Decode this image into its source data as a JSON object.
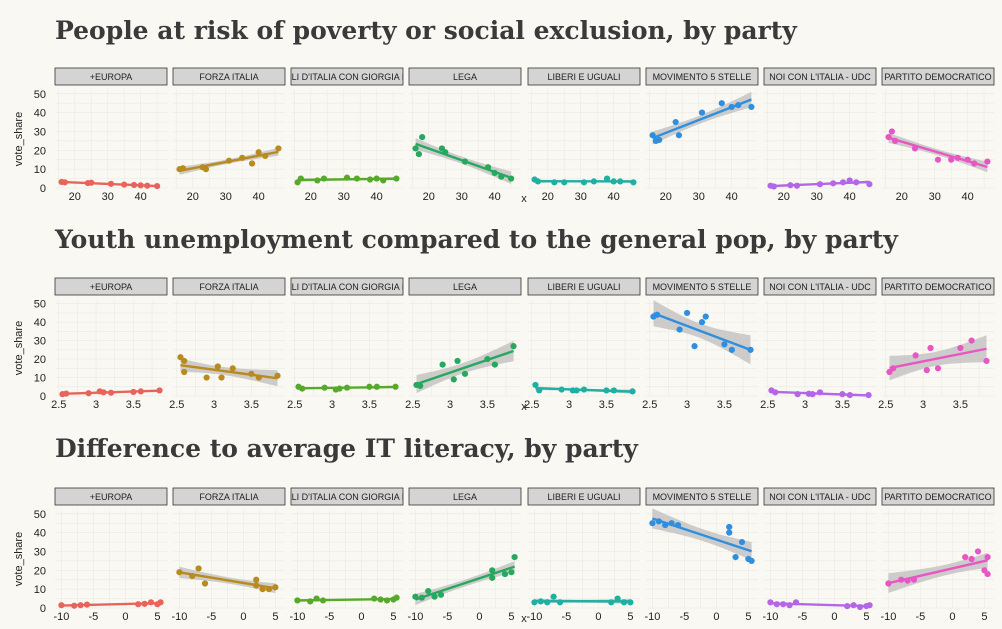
{
  "chart_data": [
    {
      "type": "scatter",
      "title": "People at risk of poverty or social exclusion, by party",
      "xlabel": "x",
      "ylabel": "vote_share",
      "xlim": [
        14,
        48
      ],
      "ylim": [
        0,
        52
      ],
      "xticks": [
        20,
        30,
        40
      ],
      "yticks": [
        0,
        10,
        20,
        30,
        40,
        50
      ],
      "grid": true,
      "trend": "linear with confidence band",
      "facets": [
        {
          "name": "+EUROPA",
          "color": "#e8645a",
          "points": [
            [
              16,
              3.2
            ],
            [
              17,
              3
            ],
            [
              24,
              2.6
            ],
            [
              25,
              2.8
            ],
            [
              31,
              2.2
            ],
            [
              35,
              1.8
            ],
            [
              38,
              1.6
            ],
            [
              40,
              1.4
            ],
            [
              42,
              1.2
            ],
            [
              45,
              1.0
            ]
          ]
        },
        {
          "name": "FORZA ITALIA",
          "color": "#b88a20",
          "points": [
            [
              16,
              10
            ],
            [
              17,
              10.5
            ],
            [
              23,
              11
            ],
            [
              24,
              10
            ],
            [
              31,
              14.5
            ],
            [
              35,
              16
            ],
            [
              38,
              13
            ],
            [
              40,
              19
            ],
            [
              42,
              17
            ],
            [
              46,
              21
            ]
          ]
        },
        {
          "name": "FRATELLI D'ITALIA CON GIORGIA MELONI",
          "color": "#57a92a",
          "points": [
            [
              16,
              3
            ],
            [
              17,
              5
            ],
            [
              22,
              4
            ],
            [
              24,
              5
            ],
            [
              31,
              5.5
            ],
            [
              34,
              5
            ],
            [
              38,
              4.5
            ],
            [
              40,
              5
            ],
            [
              42,
              4
            ],
            [
              46,
              5
            ]
          ]
        },
        {
          "name": "LEGA",
          "color": "#27a85f",
          "points": [
            [
              16,
              21
            ],
            [
              17,
              18
            ],
            [
              18,
              27
            ],
            [
              24,
              21
            ],
            [
              25,
              19
            ],
            [
              31,
              14
            ],
            [
              38,
              11
            ],
            [
              40,
              8
            ],
            [
              42,
              6
            ],
            [
              45,
              5
            ]
          ]
        },
        {
          "name": "LIBERI E UGUALI",
          "color": "#1fb0a4",
          "points": [
            [
              16,
              4.5
            ],
            [
              17,
              3.5
            ],
            [
              22,
              3
            ],
            [
              25,
              3
            ],
            [
              31,
              3
            ],
            [
              34,
              3.5
            ],
            [
              38,
              5
            ],
            [
              40,
              3.5
            ],
            [
              42,
              3.5
            ],
            [
              46,
              3
            ]
          ]
        },
        {
          "name": "MOVIMENTO 5 STELLE",
          "color": "#2e8fe0",
          "points": [
            [
              16,
              28
            ],
            [
              17,
              25
            ],
            [
              18,
              25.5
            ],
            [
              23,
              35
            ],
            [
              24,
              28
            ],
            [
              31,
              40
            ],
            [
              37,
              45
            ],
            [
              40,
              43
            ],
            [
              42,
              44
            ],
            [
              46,
              43
            ]
          ]
        },
        {
          "name": "NOI CON L'ITALIA - UDC",
          "color": "#b566e8",
          "points": [
            [
              16,
              1.2
            ],
            [
              17,
              0.8
            ],
            [
              22,
              1.5
            ],
            [
              24,
              1.2
            ],
            [
              31,
              2
            ],
            [
              35,
              2.5
            ],
            [
              38,
              3
            ],
            [
              40,
              4
            ],
            [
              42,
              3
            ],
            [
              46,
              2
            ]
          ]
        },
        {
          "name": "PARTITO DEMOCRATICO",
          "color": "#e856c4",
          "points": [
            [
              16,
              27
            ],
            [
              17,
              30
            ],
            [
              18,
              25
            ],
            [
              24,
              21
            ],
            [
              31,
              15
            ],
            [
              35,
              15
            ],
            [
              37,
              16
            ],
            [
              40,
              15
            ],
            [
              42,
              13
            ],
            [
              46,
              14
            ]
          ]
        }
      ]
    },
    {
      "type": "scatter",
      "title": "Youth unemployment compared to the general pop, by party",
      "xlabel": "x",
      "ylabel": "vote_share",
      "xlim": [
        2.45,
        3.95
      ],
      "ylim": [
        0,
        52
      ],
      "xticks": [
        2.5,
        3.0,
        3.5
      ],
      "yticks": [
        0,
        10,
        20,
        30,
        40,
        50
      ],
      "grid": true,
      "trend": "linear with confidence band",
      "facets": [
        {
          "name": "+EUROPA",
          "color": "#e8645a",
          "points": [
            [
              2.55,
              1
            ],
            [
              2.6,
              1.3
            ],
            [
              2.9,
              1.5
            ],
            [
              3.05,
              2.5
            ],
            [
              3.1,
              2
            ],
            [
              3.2,
              1.8
            ],
            [
              3.5,
              2.2
            ],
            [
              3.6,
              2.5
            ],
            [
              3.85,
              3
            ]
          ]
        },
        {
          "name": "FORZA ITALIA",
          "color": "#b88a20",
          "points": [
            [
              2.55,
              21
            ],
            [
              2.6,
              19
            ],
            [
              2.6,
              13
            ],
            [
              2.9,
              10
            ],
            [
              3.05,
              16
            ],
            [
              3.1,
              10
            ],
            [
              3.25,
              15
            ],
            [
              3.5,
              12
            ],
            [
              3.6,
              10
            ],
            [
              3.85,
              11
            ]
          ]
        },
        {
          "name": "FRATELLI D'ITALIA CON GIORGIA MELONI",
          "color": "#57a92a",
          "points": [
            [
              2.55,
              5
            ],
            [
              2.6,
              4
            ],
            [
              2.9,
              4.5
            ],
            [
              3.05,
              3.5
            ],
            [
              3.1,
              4
            ],
            [
              3.2,
              4.5
            ],
            [
              3.5,
              5
            ],
            [
              3.6,
              5
            ],
            [
              3.85,
              5
            ]
          ]
        },
        {
          "name": "LEGA",
          "color": "#27a85f",
          "points": [
            [
              2.55,
              6
            ],
            [
              2.6,
              5.5
            ],
            [
              2.9,
              17
            ],
            [
              3.05,
              9
            ],
            [
              3.1,
              19
            ],
            [
              3.2,
              12
            ],
            [
              3.5,
              20
            ],
            [
              3.6,
              17
            ],
            [
              3.85,
              27
            ]
          ]
        },
        {
          "name": "LIBERI E UGUALI",
          "color": "#1fb0a4",
          "points": [
            [
              2.55,
              6
            ],
            [
              2.6,
              3
            ],
            [
              2.9,
              3.5
            ],
            [
              3.05,
              3
            ],
            [
              3.1,
              3
            ],
            [
              3.2,
              3.5
            ],
            [
              3.5,
              3
            ],
            [
              3.6,
              3
            ],
            [
              3.85,
              2.5
            ]
          ]
        },
        {
          "name": "MOVIMENTO 5 STELLE",
          "color": "#2e8fe0",
          "points": [
            [
              2.55,
              43
            ],
            [
              2.6,
              44
            ],
            [
              2.9,
              36
            ],
            [
              3.0,
              45
            ],
            [
              3.1,
              27
            ],
            [
              3.2,
              40
            ],
            [
              3.25,
              43
            ],
            [
              3.5,
              28
            ],
            [
              3.6,
              25
            ],
            [
              3.85,
              25
            ]
          ]
        },
        {
          "name": "NOI CON L'ITALIA - UDC",
          "color": "#b566e8",
          "points": [
            [
              2.55,
              3
            ],
            [
              2.6,
              2
            ],
            [
              2.9,
              1
            ],
            [
              3.05,
              1.2
            ],
            [
              3.1,
              1
            ],
            [
              3.2,
              2
            ],
            [
              3.5,
              1
            ],
            [
              3.6,
              0.5
            ],
            [
              3.85,
              0.5
            ]
          ]
        },
        {
          "name": "PARTITO DEMOCRATICO",
          "color": "#e856c4",
          "points": [
            [
              2.55,
              13
            ],
            [
              2.6,
              15
            ],
            [
              2.9,
              22
            ],
            [
              3.05,
              14
            ],
            [
              3.1,
              26
            ],
            [
              3.2,
              15
            ],
            [
              3.5,
              26
            ],
            [
              3.65,
              30
            ],
            [
              3.85,
              19
            ]
          ]
        }
      ]
    },
    {
      "type": "scatter",
      "title": "Difference to average IT literacy, by party",
      "xlabel": "x",
      "ylabel": "vote_share",
      "xlim": [
        -11,
        6.5
      ],
      "ylim": [
        0,
        52
      ],
      "xticks": [
        -10,
        -5,
        0,
        5
      ],
      "yticks": [
        0,
        10,
        20,
        30,
        40,
        50
      ],
      "grid": true,
      "trend": "linear with confidence band",
      "facets": [
        {
          "name": "+EUROPA",
          "color": "#e8645a",
          "points": [
            [
              -10,
              1.5
            ],
            [
              -8,
              1.2
            ],
            [
              -7,
              1.5
            ],
            [
              -6,
              1.8
            ],
            [
              2,
              2
            ],
            [
              3,
              2.2
            ],
            [
              4,
              3
            ],
            [
              5,
              2
            ],
            [
              5.5,
              3
            ]
          ]
        },
        {
          "name": "FORZA ITALIA",
          "color": "#b88a20",
          "points": [
            [
              -10,
              19
            ],
            [
              -8,
              17
            ],
            [
              -7,
              21
            ],
            [
              -6,
              13
            ],
            [
              2,
              15
            ],
            [
              2,
              12
            ],
            [
              3,
              10
            ],
            [
              4,
              10
            ],
            [
              5,
              11
            ]
          ]
        },
        {
          "name": "FRATELLI D'ITALIA CON GIORGIA MELONI",
          "color": "#57a92a",
          "points": [
            [
              -10,
              4
            ],
            [
              -8,
              3.5
            ],
            [
              -7,
              5
            ],
            [
              -6,
              4
            ],
            [
              2,
              5
            ],
            [
              3,
              4.5
            ],
            [
              4,
              4
            ],
            [
              5,
              4.5
            ],
            [
              5.5,
              5.5
            ]
          ]
        },
        {
          "name": "LEGA",
          "color": "#27a85f",
          "points": [
            [
              -10,
              6
            ],
            [
              -9,
              5.5
            ],
            [
              -8,
              9
            ],
            [
              -7,
              6
            ],
            [
              -6,
              7
            ],
            [
              2,
              20
            ],
            [
              2,
              16
            ],
            [
              4,
              18
            ],
            [
              5,
              19
            ],
            [
              5.5,
              27
            ]
          ]
        },
        {
          "name": "LIBERI E UGUALI",
          "color": "#1fb0a4",
          "points": [
            [
              -10,
              3
            ],
            [
              -9,
              3.5
            ],
            [
              -8,
              3
            ],
            [
              -7,
              6
            ],
            [
              -6,
              3
            ],
            [
              2,
              3
            ],
            [
              3,
              5
            ],
            [
              4,
              3
            ],
            [
              5,
              3
            ]
          ]
        },
        {
          "name": "MOVIMENTO 5 STELLE",
          "color": "#2e8fe0",
          "points": [
            [
              -10,
              45
            ],
            [
              -9,
              46
            ],
            [
              -8,
              44
            ],
            [
              -7,
              45
            ],
            [
              -6,
              44
            ],
            [
              2,
              43
            ],
            [
              2,
              40
            ],
            [
              3,
              27
            ],
            [
              4,
              35
            ],
            [
              5,
              26
            ],
            [
              5.5,
              25
            ]
          ]
        },
        {
          "name": "NOI CON L'ITALIA - UDC",
          "color": "#b566e8",
          "points": [
            [
              -10,
              3
            ],
            [
              -9,
              2
            ],
            [
              -8,
              2
            ],
            [
              -7,
              1.5
            ],
            [
              -6,
              3
            ],
            [
              2,
              1
            ],
            [
              3,
              1.5
            ],
            [
              4,
              0.5
            ],
            [
              5,
              1
            ],
            [
              5.5,
              1.5
            ]
          ]
        },
        {
          "name": "PARTITO DEMOCRATICO",
          "color": "#e856c4",
          "points": [
            [
              -10,
              13
            ],
            [
              -8,
              15
            ],
            [
              -7,
              14.5
            ],
            [
              -6,
              15
            ],
            [
              2,
              27
            ],
            [
              3,
              26
            ],
            [
              4,
              30
            ],
            [
              5,
              20
            ],
            [
              5.5,
              27
            ],
            [
              5.5,
              18
            ]
          ]
        }
      ]
    }
  ]
}
